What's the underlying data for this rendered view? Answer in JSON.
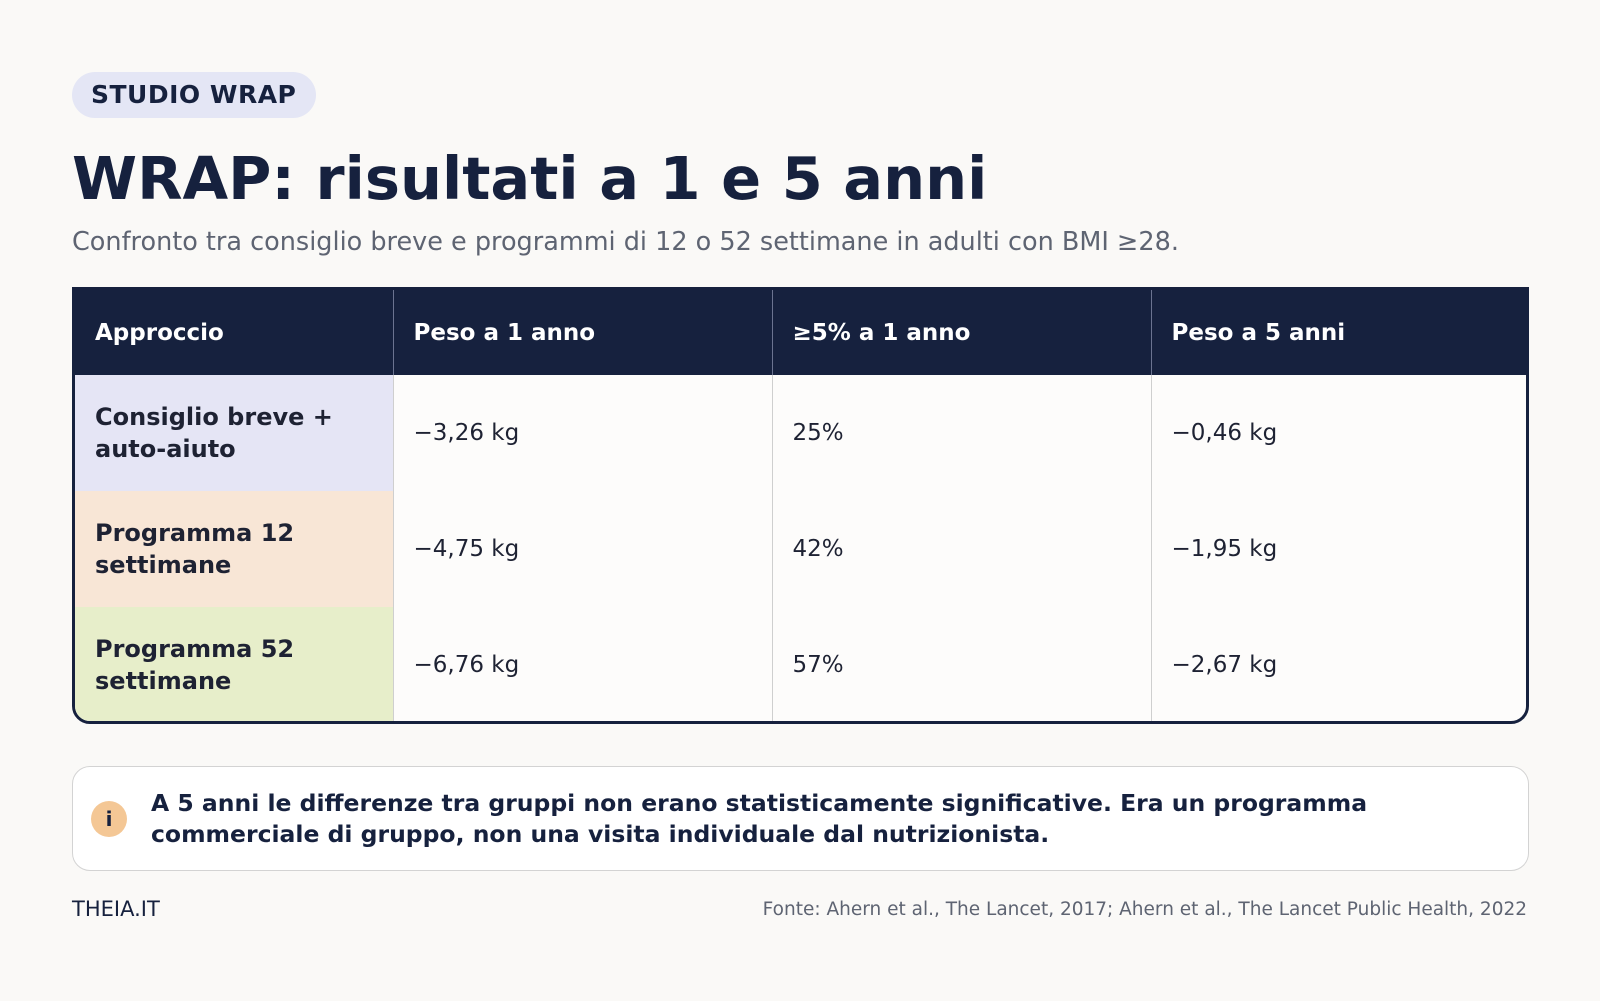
{
  "badge": "STUDIO WRAP",
  "title": "WRAP: risultati a 1 e 5 anni",
  "subtitle": "Confronto tra consiglio breve e programmi di 12 o 52 settimane in adulti con BMI ≥28.",
  "table": {
    "headers": [
      "Approccio",
      "Peso a 1 anno",
      "≥5% a 1 anno",
      "Peso a 5 anni"
    ],
    "rows": [
      [
        "Consiglio breve + auto-aiuto",
        "−3,26 kg",
        "25%",
        "−0,46 kg"
      ],
      [
        "Programma 12 settimane",
        "−4,75 kg",
        "42%",
        "−1,95 kg"
      ],
      [
        "Programma 52 settimane",
        "−6,76 kg",
        "57%",
        "−2,67 kg"
      ]
    ]
  },
  "note": {
    "icon": "info-icon",
    "icon_glyph": "i",
    "text": "A 5 anni le differenze tra gruppi non erano statisticamente significative. Era un programma commerciale di gruppo, non una visita individuale dal nutrizionista."
  },
  "footer": {
    "brand": "THEIA.IT",
    "source": "Fonte: Ahern et al., The Lancet, 2017; Ahern et al., The Lancet Public Health, 2022"
  },
  "colors": {
    "header_bg": "#16213e",
    "row1_label_bg": "#e5e5f5",
    "row2_label_bg": "#f8e6d6",
    "row3_label_bg": "#e7eeca",
    "info_icon_bg": "#f4c795"
  }
}
